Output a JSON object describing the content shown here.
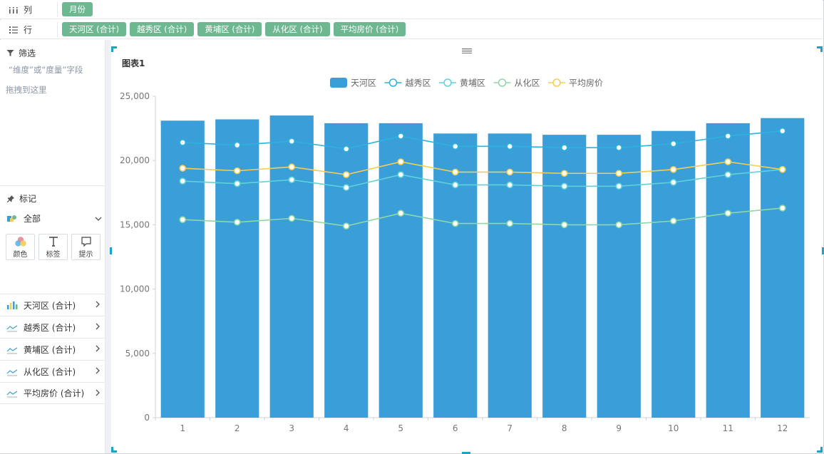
{
  "shelves": {
    "columns": {
      "label": "列",
      "pills": [
        "月份"
      ]
    },
    "rows": {
      "label": "行",
      "pills": [
        "天河区 (合计)",
        "越秀区 (合计)",
        "黄埔区 (合计)",
        "从化区 (合计)",
        "平均房价 (合计)"
      ]
    }
  },
  "filter": {
    "title": "筛选",
    "hint_line1": "“维度”或“度量”字段",
    "hint_line2": "拖拽到这里"
  },
  "marks": {
    "title": "标记",
    "all_label": "全部",
    "buttons": [
      {
        "label": "颜色",
        "icon": "color-icon"
      },
      {
        "label": "标签",
        "icon": "text-icon"
      },
      {
        "label": "提示",
        "icon": "tooltip-icon"
      }
    ],
    "fields": [
      {
        "label": "天河区 (合计)",
        "icon": "bar-chart-icon"
      },
      {
        "label": "越秀区 (合计)",
        "icon": "line-chart-icon"
      },
      {
        "label": "黄埔区 (合计)",
        "icon": "line-chart-icon"
      },
      {
        "label": "从化区 (合计)",
        "icon": "line-chart-icon"
      },
      {
        "label": "平均房价 (合计)",
        "icon": "line-chart-icon"
      }
    ]
  },
  "chart_data": {
    "type": "bar",
    "title": "图表1",
    "categories": [
      "1",
      "2",
      "3",
      "4",
      "5",
      "6",
      "7",
      "8",
      "9",
      "10",
      "11",
      "12"
    ],
    "ylim": [
      0,
      25000
    ],
    "yticks": [
      0,
      5000,
      10000,
      15000,
      20000,
      25000
    ],
    "ytick_labels": [
      "0",
      "5,000",
      "10,000",
      "15,000",
      "20,000",
      "25,000"
    ],
    "legend_position": "top-center",
    "grid": false,
    "series": [
      {
        "name": "天河区",
        "type": "bar",
        "color": "#3a9fd8",
        "values": [
          23100,
          23200,
          23500,
          22900,
          22900,
          22100,
          22100,
          22000,
          22000,
          22300,
          22900,
          23300
        ]
      },
      {
        "name": "越秀区",
        "type": "line",
        "color": "#2bb2de",
        "values": [
          21400,
          21200,
          21500,
          20900,
          21900,
          21100,
          21100,
          21000,
          21000,
          21300,
          21900,
          22300
        ]
      },
      {
        "name": "黄埔区",
        "type": "line",
        "color": "#5fd2d9",
        "values": [
          18400,
          18200,
          18500,
          17900,
          18900,
          18100,
          18100,
          18000,
          18000,
          18300,
          18900,
          19300
        ]
      },
      {
        "name": "从化区",
        "type": "line",
        "color": "#8ed8a6",
        "values": [
          15400,
          15200,
          15500,
          14900,
          15900,
          15100,
          15100,
          15000,
          15000,
          15300,
          15900,
          16300
        ]
      },
      {
        "name": "平均房价",
        "type": "line",
        "color": "#f5cd55",
        "values": [
          19400,
          19200,
          19500,
          18900,
          19900,
          19100,
          19100,
          19000,
          19000,
          19300,
          19900,
          19300
        ]
      }
    ]
  }
}
